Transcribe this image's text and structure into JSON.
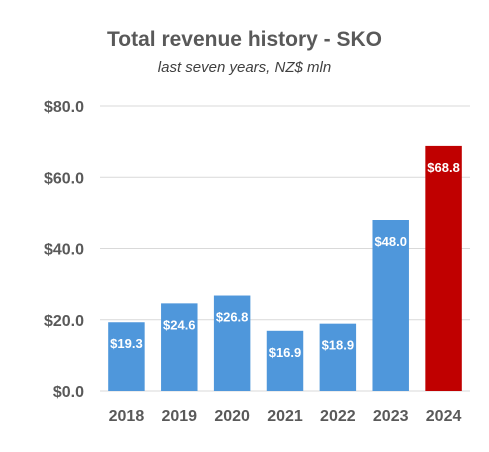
{
  "chart_data": {
    "type": "bar",
    "title": "Total revenue history - SKO",
    "subtitle": "last seven years, NZ$ mln",
    "categories": [
      "2018",
      "2019",
      "2020",
      "2021",
      "2022",
      "2023",
      "2024"
    ],
    "values": [
      19.3,
      24.6,
      26.8,
      16.9,
      18.9,
      48.0,
      68.8
    ],
    "data_labels": [
      "$19.3",
      "$24.6",
      "$26.8",
      "$16.9",
      "$18.9",
      "$48.0",
      "$68.8"
    ],
    "y_ticks": [
      0,
      20,
      40,
      60,
      80
    ],
    "y_tick_labels": [
      "$0.0",
      "$20.0",
      "$40.0",
      "$60.0",
      "$80.0"
    ],
    "ylim": [
      0,
      80
    ],
    "xlabel": "",
    "ylabel": "",
    "grid": true,
    "legend": "none",
    "colors": {
      "bar": "#4f97db",
      "highlight": "#c00000",
      "highlight_index": 6,
      "grid": "#d9d9d9",
      "axis_text": "#595959",
      "data_label": "#ffffff"
    }
  }
}
